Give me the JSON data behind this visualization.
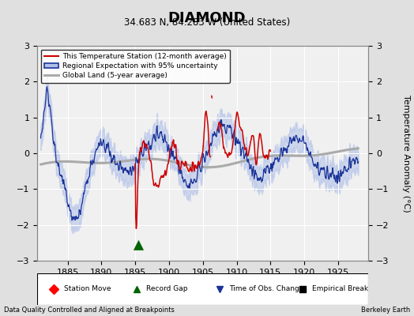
{
  "title": "DIAMOND",
  "subtitle": "34.683 N, 84.283 W (United States)",
  "ylabel": "Temperature Anomaly (°C)",
  "xlabel_note": "Data Quality Controlled and Aligned at Breakpoints",
  "credit": "Berkeley Earth",
  "xlim": [
    1880.5,
    1929.5
  ],
  "ylim": [
    -3,
    3
  ],
  "yticks": [
    -3,
    -2,
    -1,
    0,
    1,
    2,
    3
  ],
  "xticks": [
    1885,
    1890,
    1895,
    1900,
    1905,
    1910,
    1915,
    1920,
    1925
  ],
  "bg_color": "#e0e0e0",
  "plot_bg_color": "#f0f0f0",
  "red_line_color": "#cc0000",
  "blue_line_color": "#1a3399",
  "blue_fill_color": "#b0c0e8",
  "gray_line_color": "#aaaaaa",
  "record_gap_x": 1895.5,
  "record_gap_y": -2.55,
  "legend_labels": [
    "This Temperature Station (12-month average)",
    "Regional Expectation with 95% uncertainty",
    "Global Land (5-year average)"
  ],
  "bottom_legend": [
    "Station Move",
    "Record Gap",
    "Time of Obs. Change",
    "Empirical Break"
  ]
}
